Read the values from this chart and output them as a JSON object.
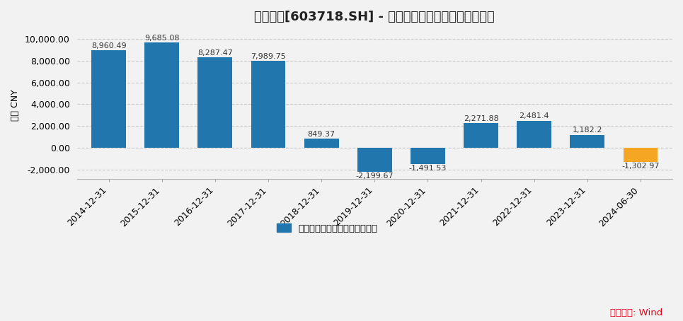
{
  "title": "海利生物[603718.SH] - 扣非后归属母公司股东的净利润",
  "ylabel": "万元 CNY",
  "categories": [
    "2014-12-31",
    "2015-12-31",
    "2016-12-31",
    "2017-12-31",
    "2018-12-31",
    "2019-12-31",
    "2020-12-31",
    "2021-12-31",
    "2022-12-31",
    "2023-12-31",
    "2024-06-30"
  ],
  "values": [
    8960.49,
    9685.08,
    8287.47,
    7989.75,
    849.37,
    -2199.67,
    -1491.53,
    2271.88,
    2481.4,
    1182.2,
    -1302.97
  ],
  "bar_color_blue": "#2176ae",
  "bar_color_orange": "#f5a623",
  "ylim_min": -2900,
  "ylim_max": 10800,
  "yticks": [
    -2000.0,
    0.0,
    2000.0,
    4000.0,
    6000.0,
    8000.0,
    10000.0
  ],
  "grid_color": "#cccccc",
  "background_color": "#f2f2f2",
  "legend_label": "扣非后归属母公司股东的净利润",
  "legend_color_blue": "#2176ae",
  "source_text": "数据来源: Wind",
  "source_color": "#e8001c",
  "title_fontsize": 13,
  "bar_label_fontsize": 8,
  "axis_fontsize": 9
}
